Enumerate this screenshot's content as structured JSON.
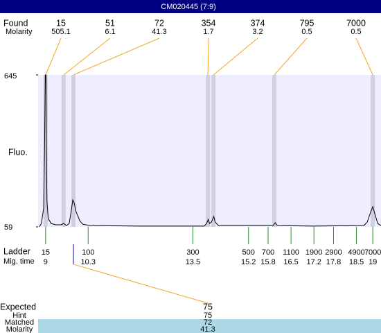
{
  "chart_data": {
    "type": "line",
    "title": "CM020445 (7:9)",
    "ylabel": "Fluo.",
    "ylim": [
      59,
      645
    ],
    "yticks": [
      59,
      645
    ],
    "xlim": [
      8.77,
      19.25
    ],
    "trace": {
      "color": "#000000",
      "x": [
        8.81,
        8.87,
        8.94,
        8.97,
        8.99,
        9.01,
        9.02,
        9.04,
        9.08,
        9.17,
        9.3,
        9.47,
        9.55,
        9.64,
        9.72,
        9.78,
        9.83,
        9.87,
        9.93,
        10.04,
        10.14,
        10.36,
        11.84,
        13.85,
        13.92,
        13.97,
        14.01,
        14.07,
        14.14,
        14.18,
        14.28,
        15.95,
        16.02,
        16.08,
        17.14,
        18.73,
        18.83,
        18.94,
        19.0,
        19.06,
        19.15,
        19.25
      ],
      "values": [
        59,
        72,
        131,
        399,
        645,
        645,
        399,
        158,
        91,
        72,
        67,
        67,
        72,
        64,
        72,
        118,
        163,
        153,
        118,
        83,
        69,
        64,
        62,
        62,
        72,
        88,
        72,
        78,
        99,
        78,
        64,
        64,
        75,
        64,
        62,
        64,
        78,
        118,
        137,
        110,
        72,
        64
      ]
    },
    "found": {
      "label": "Found",
      "molarity_label": "Molarity",
      "sizes": [
        15,
        51,
        72,
        354,
        374,
        795,
        7000
      ],
      "molarity": [
        505.1,
        6.1,
        41.3,
        1.7,
        3.2,
        0.5,
        0.5
      ],
      "times": [
        9.0,
        9.55,
        9.85,
        13.96,
        14.13,
        15.99,
        19.0
      ]
    },
    "ladder": {
      "label": "Ladder",
      "time_label": "Mig. time",
      "sizes": [
        15,
        100,
        300,
        500,
        700,
        1100,
        1900,
        2900,
        4900,
        7000
      ],
      "times": [
        9,
        10.3,
        13.5,
        15.2,
        15.8,
        16.5,
        17.2,
        17.8,
        18.5,
        19
      ]
    },
    "expected": {
      "label": "Expected",
      "value": 75,
      "hint_label": "Hint",
      "hint": 75,
      "matched_label": "Matched",
      "matched": 72,
      "molarity_label": "Molarity",
      "molarity": 41.3
    }
  }
}
